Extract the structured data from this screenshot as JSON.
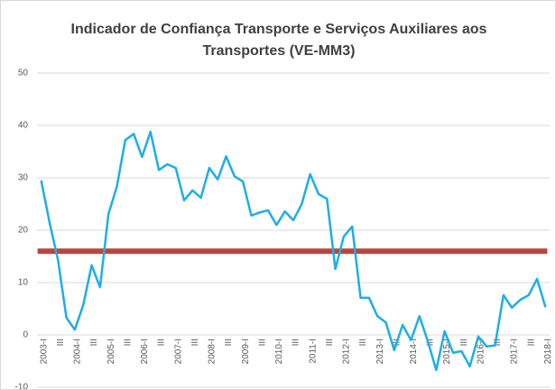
{
  "chart_data": {
    "type": "line",
    "title": "Indicador de Confiança Transporte e Serviços Auxiliares aos Transportes (VE-MM3)",
    "categories": [
      "2003-I",
      null,
      "III",
      null,
      "2004-I",
      null,
      "III",
      null,
      "2005-I",
      null,
      "III",
      null,
      "2006-I",
      null,
      "III",
      null,
      "2007-I",
      null,
      "III",
      null,
      "2008-I",
      null,
      "III",
      null,
      "2009-I",
      null,
      "III",
      null,
      "2010-I",
      null,
      "III",
      null,
      "2011-I",
      null,
      "III",
      null,
      "2012-I",
      null,
      "III",
      null,
      "2013-I",
      null,
      "III",
      null,
      "2014-I",
      null,
      "III",
      null,
      "2015-I",
      null,
      "III",
      null,
      "2016-I",
      null,
      "III",
      null,
      "2017-I",
      null,
      "III",
      null,
      "2018-I"
    ],
    "series": [
      {
        "color": "#1eaee6",
        "values": [
          29.5,
          21.4,
          14.3,
          3.3,
          1,
          5.7,
          13.3,
          9.1,
          23.1,
          28.3,
          37.2,
          38.4,
          34,
          38.8,
          31.5,
          32.6,
          31.9,
          25.7,
          27.6,
          26.2,
          31.9,
          29.7,
          34.1,
          30.3,
          29.3,
          22.8,
          23.4,
          23.8,
          21,
          23.6,
          21.9,
          25,
          30.7,
          26.9,
          26,
          12.6,
          18.8,
          20.7,
          7.1,
          7.1,
          3.6,
          2.4,
          -2.9,
          1.9,
          -1,
          3.6,
          -1.2,
          -6.7,
          0.7,
          -3.4,
          -3.1,
          -6,
          -0.3,
          -2.2,
          -2,
          7.6,
          5.2,
          6.7,
          7.6,
          10.7,
          5.3
        ]
      }
    ],
    "reference_line": {
      "value": 16,
      "color": "#b5473f"
    },
    "ylim": [
      -10,
      50
    ],
    "yticks": [
      -10,
      0,
      10,
      20,
      30,
      40,
      50
    ],
    "grid": true
  }
}
